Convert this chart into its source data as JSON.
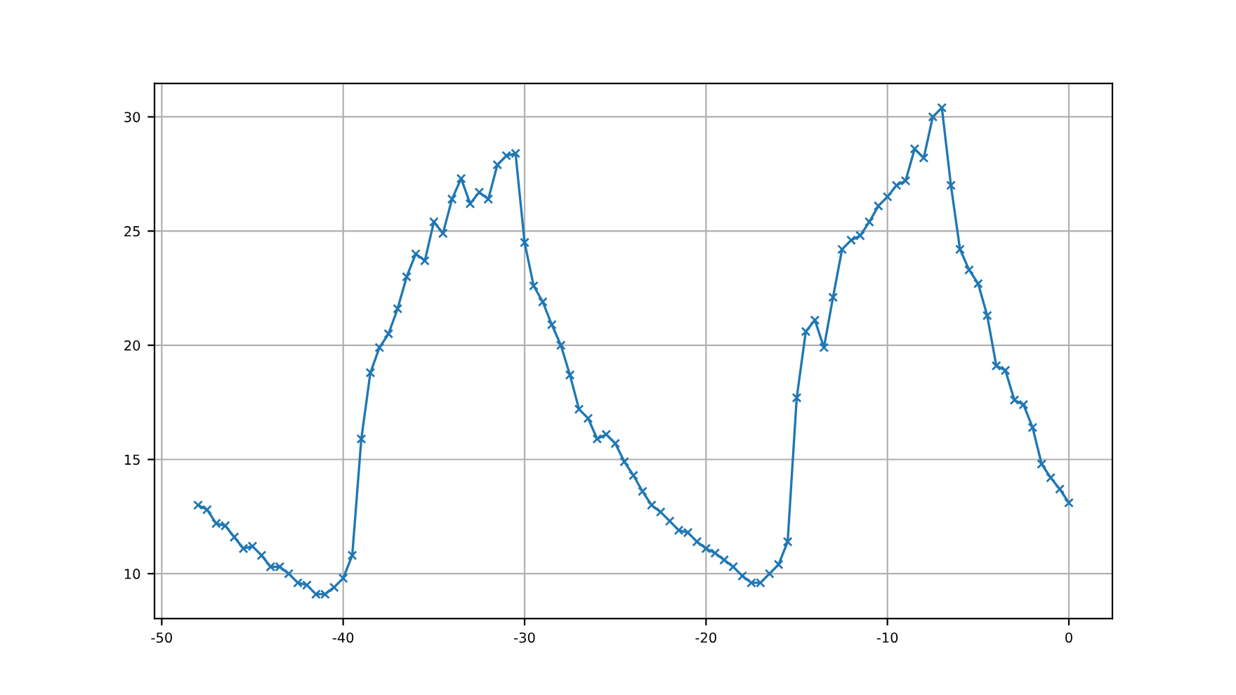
{
  "chart_data": {
    "type": "line",
    "xlim": [
      -50.4,
      2.4
    ],
    "ylim": [
      8.035,
      31.465
    ],
    "xticks": [
      -50,
      -40,
      -30,
      -20,
      -10,
      0
    ],
    "yticks": [
      10,
      15,
      20,
      25,
      30
    ],
    "grid": true,
    "marker": "cross",
    "line_style": "solid",
    "series": [
      {
        "color": "#1f77b4",
        "x": [
          -48,
          -47.5,
          -47,
          -46.5,
          -46,
          -45.5,
          -45,
          -44.5,
          -44,
          -43.5,
          -43,
          -42.5,
          -42,
          -41.5,
          -41,
          -40.5,
          -40,
          -39.5,
          -39,
          -38.5,
          -38,
          -37.5,
          -37,
          -36.5,
          -36,
          -35.5,
          -35,
          -34.5,
          -34,
          -33.5,
          -33,
          -32.5,
          -32,
          -31.5,
          -31,
          -30.5,
          -30,
          -29.5,
          -29,
          -28.5,
          -28,
          -27.5,
          -27,
          -26.5,
          -26,
          -25.5,
          -25,
          -24.5,
          -24,
          -23.5,
          -23,
          -22.5,
          -22,
          -21.5,
          -21,
          -20.5,
          -20,
          -19.5,
          -19,
          -18.5,
          -18,
          -17.5,
          -17,
          -16.5,
          -16,
          -15.5,
          -15,
          -14.5,
          -14,
          -13.5,
          -13,
          -12.5,
          -12,
          -11.5,
          -11,
          -10.5,
          -10,
          -9.5,
          -9,
          -8.5,
          -8,
          -7.5,
          -7,
          -6.5,
          -6,
          -5.5,
          -5,
          -4.5,
          -4,
          -3.5,
          -3,
          -2.5,
          -2,
          -1.5,
          -1,
          -0.5,
          0
        ],
        "values": [
          13.0,
          12.8,
          12.2,
          12.1,
          11.6,
          11.1,
          11.2,
          10.8,
          10.3,
          10.3,
          10.0,
          9.6,
          9.5,
          9.1,
          9.1,
          9.4,
          9.8,
          10.8,
          15.9,
          18.8,
          19.9,
          20.5,
          21.6,
          23.0,
          24.0,
          23.7,
          25.4,
          24.9,
          26.4,
          27.3,
          26.2,
          26.7,
          26.4,
          27.9,
          28.3,
          28.4,
          24.5,
          22.6,
          21.9,
          20.9,
          20.0,
          18.7,
          17.2,
          16.8,
          15.9,
          16.1,
          15.7,
          14.9,
          14.3,
          13.6,
          13.0,
          12.7,
          12.3,
          11.9,
          11.8,
          11.4,
          11.1,
          10.9,
          10.6,
          10.3,
          9.9,
          9.6,
          9.6,
          10.0,
          10.4,
          11.4,
          17.7,
          20.6,
          21.1,
          19.9,
          22.1,
          24.2,
          24.6,
          24.8,
          25.4,
          26.1,
          26.5,
          27.0,
          27.2,
          28.6,
          28.2,
          30.0,
          30.4,
          27.0,
          24.2,
          23.3,
          22.7,
          21.3,
          19.1,
          18.9,
          17.6,
          17.4,
          16.4,
          14.8,
          14.2,
          13.7,
          13.1
        ]
      }
    ]
  }
}
